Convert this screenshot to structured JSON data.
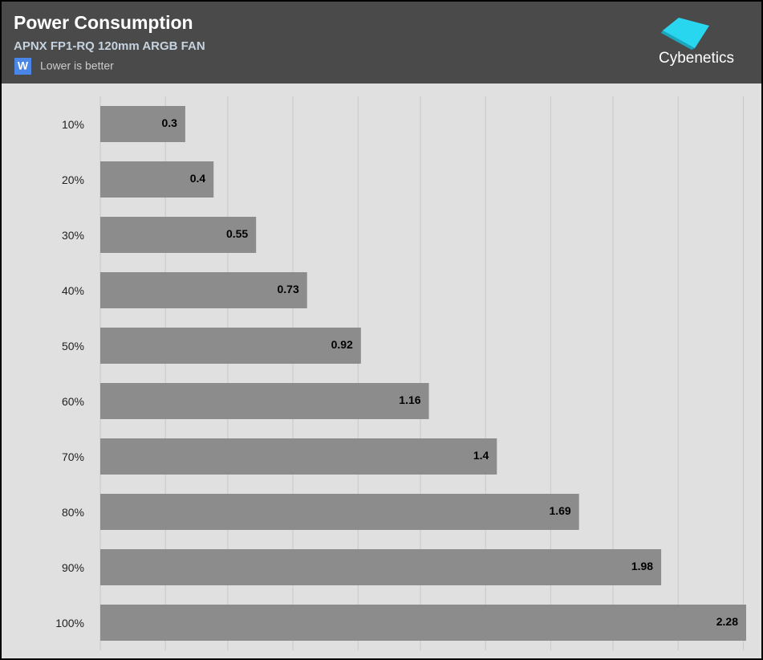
{
  "chart_data": {
    "type": "barh",
    "title": "Power Consumption",
    "subtitle": "APNX FP1-RQ 120mm ARGB FAN",
    "legend_marker": "W",
    "note": "Lower is better",
    "logo": "Cybenetics",
    "categories": [
      "10%",
      "20%",
      "30%",
      "40%",
      "50%",
      "60%",
      "70%",
      "80%",
      "90%",
      "100%"
    ],
    "values": [
      0.3,
      0.4,
      0.55,
      0.73,
      0.92,
      1.16,
      1.4,
      1.69,
      1.98,
      2.28
    ],
    "color": "#8c8c8c",
    "xlim": [
      0,
      2.28
    ],
    "xticks": [
      0,
      0.23,
      0.45,
      0.68,
      0.91,
      1.13,
      1.36,
      1.59,
      1.81,
      2.04,
      2.27
    ],
    "grid": true
  }
}
